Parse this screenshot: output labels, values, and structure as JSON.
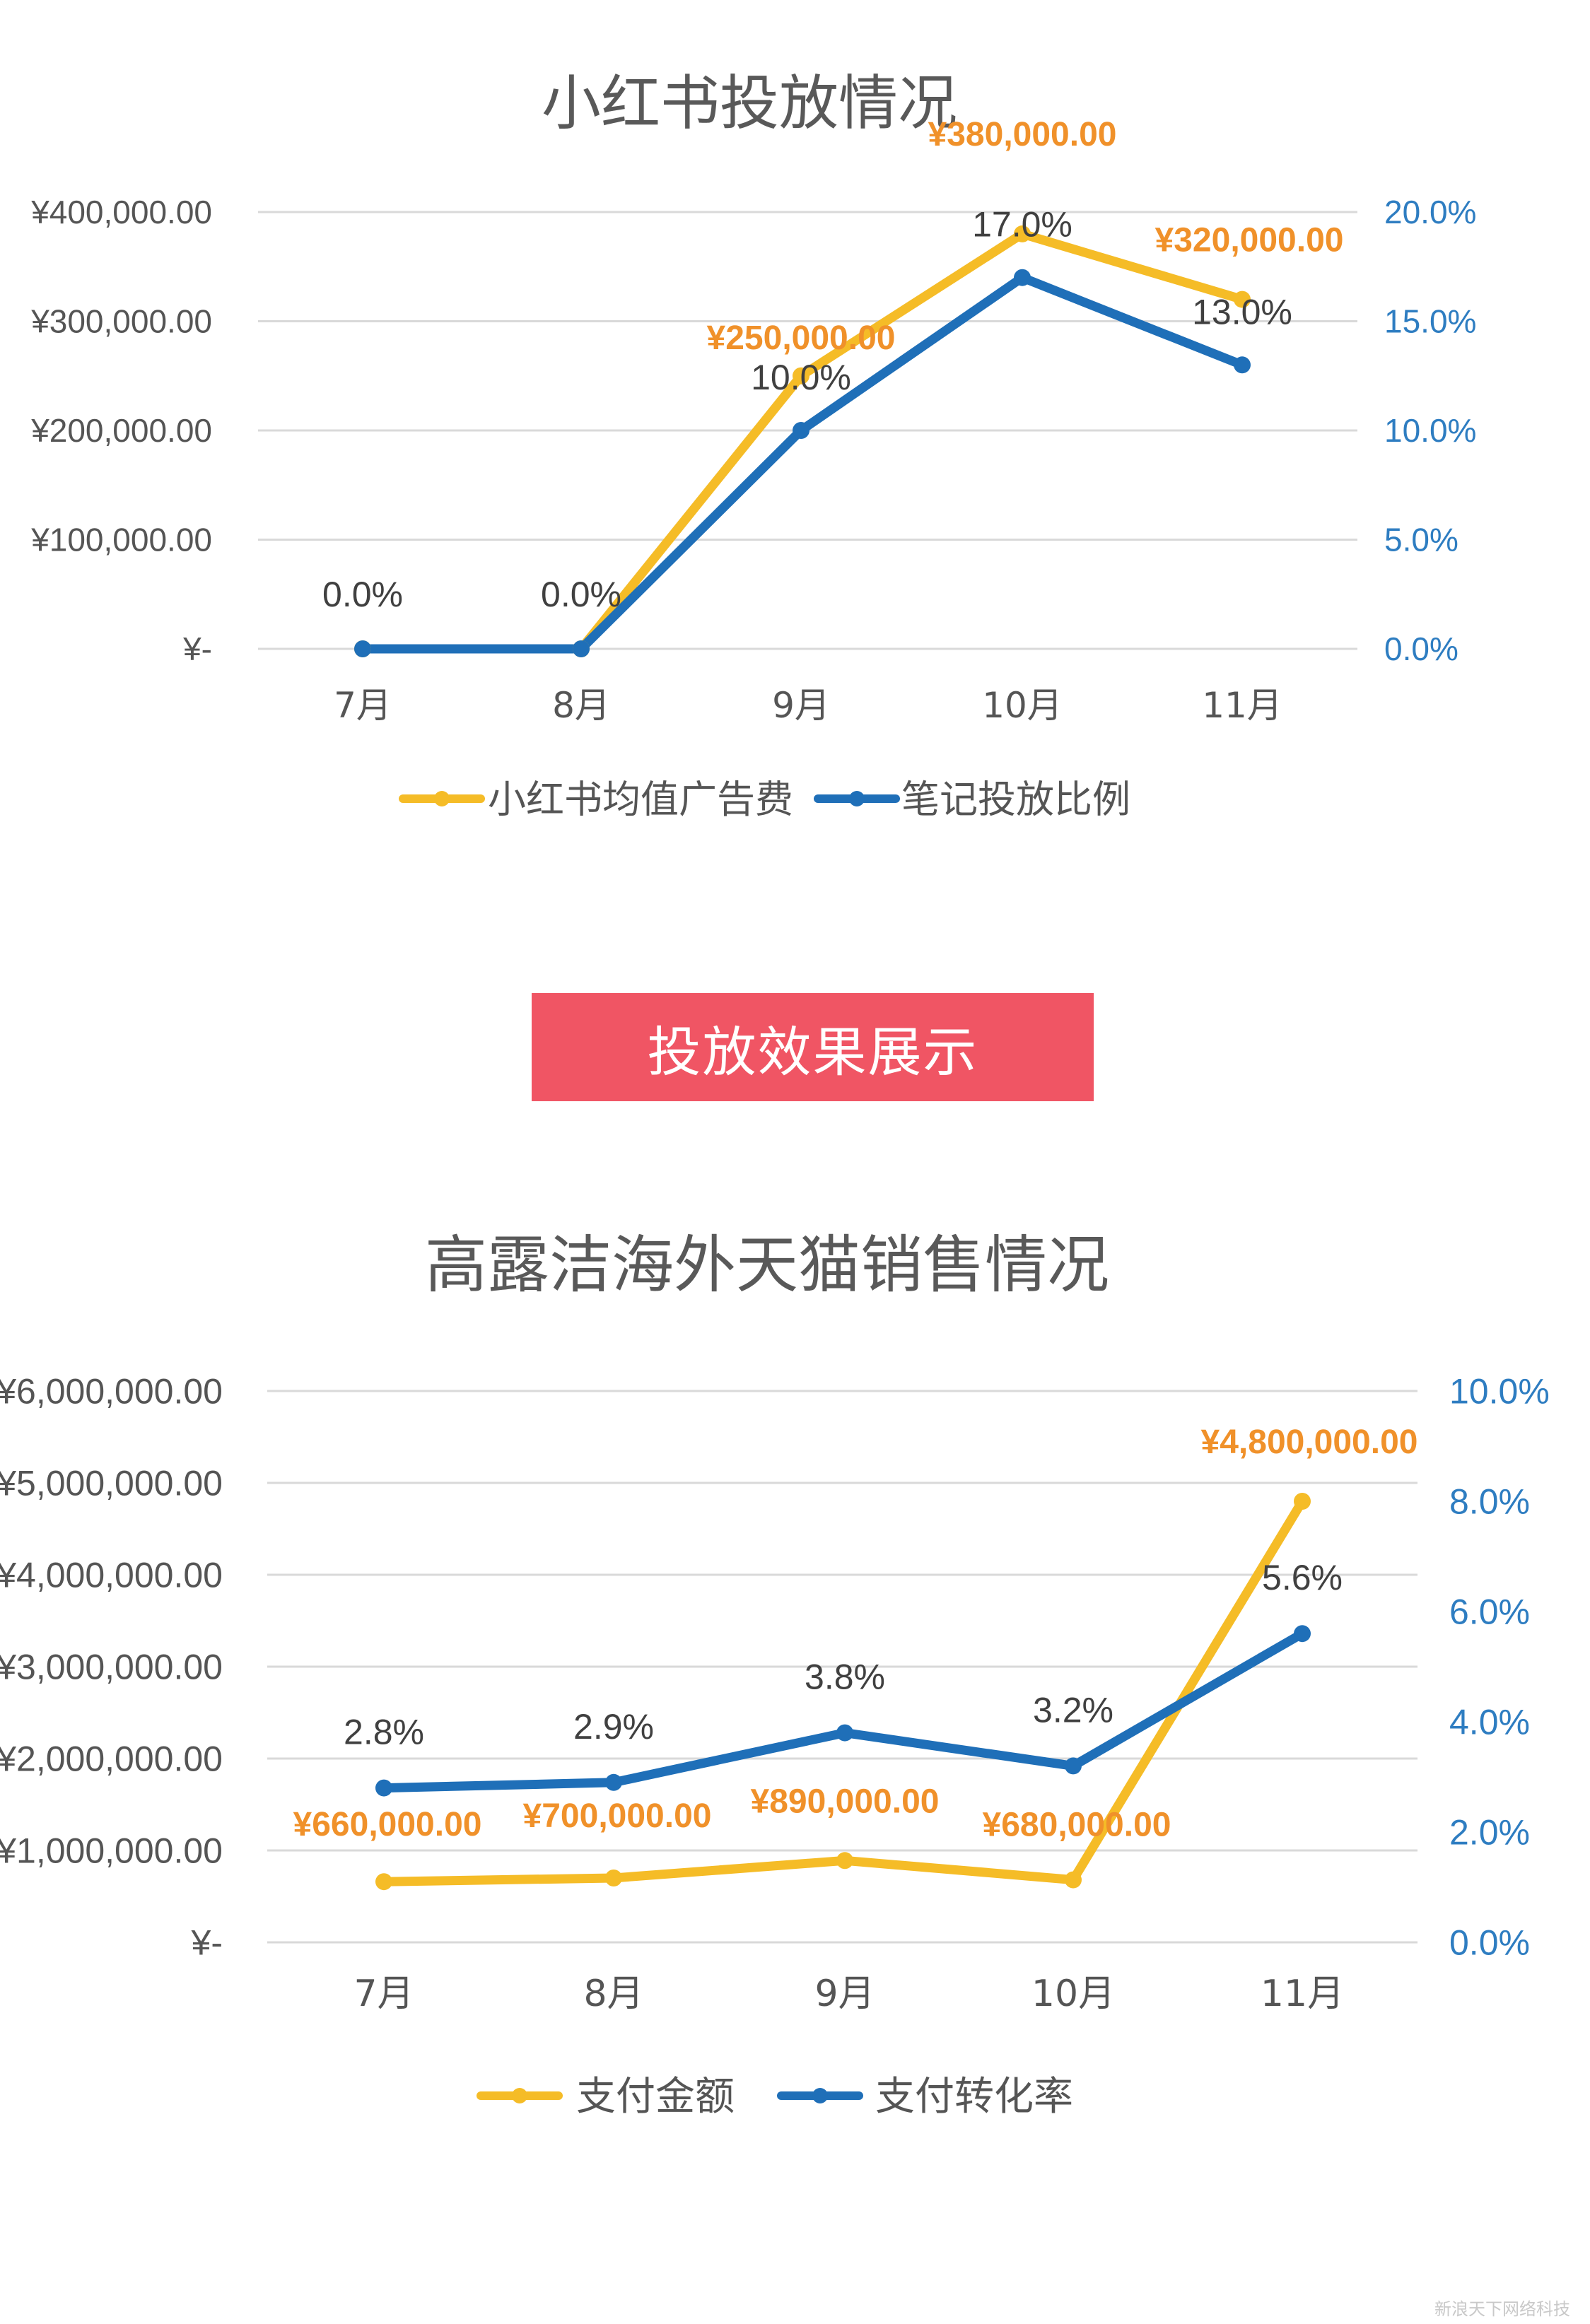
{
  "banner": {
    "label": "投放效果展示"
  },
  "watermark": "新浪天下网络科技",
  "colors": {
    "gold": "#f5bc27",
    "blue": "#1f6fb8",
    "orange_label": "#f0912a",
    "right_axis": "#2e7dc1",
    "grid": "#d9d9d9",
    "text": "#555555"
  },
  "chart_data": [
    {
      "type": "line",
      "title": "小红书投放情况",
      "categories": [
        "7月",
        "8月",
        "9月",
        "10月",
        "11月"
      ],
      "y_left": {
        "ticks": [
          "¥-",
          "¥100,000.00",
          "¥200,000.00",
          "¥300,000.00",
          "¥400,000.00"
        ],
        "ylim": [
          0,
          400000
        ]
      },
      "y_right": {
        "ticks": [
          "0.0%",
          "5.0%",
          "10.0%",
          "15.0%",
          "20.0%"
        ],
        "ylim": [
          0,
          20
        ]
      },
      "grid": true,
      "legend_position": "bottom",
      "series": [
        {
          "name": "小红书均值广告费",
          "axis": "left",
          "color": "#f5bc27",
          "values": [
            0,
            0,
            250000,
            380000,
            320000
          ],
          "labels": [
            "",
            "",
            "¥250,000.00",
            "¥380,000.00",
            "¥320,000.00"
          ]
        },
        {
          "name": "笔记投放比例",
          "axis": "right",
          "color": "#1f6fb8",
          "values": [
            0,
            0,
            10,
            17,
            13
          ],
          "labels": [
            "0.0%",
            "0.0%",
            "10.0%",
            "17.0%",
            "13.0%"
          ]
        }
      ]
    },
    {
      "type": "line",
      "title": "高露洁海外天猫销售情况",
      "categories": [
        "7月",
        "8月",
        "9月",
        "10月",
        "11月"
      ],
      "y_left": {
        "ticks": [
          "¥-",
          "¥1,000,000.00",
          "¥2,000,000.00",
          "¥3,000,000.00",
          "¥4,000,000.00",
          "¥5,000,000.00",
          "¥6,000,000.00"
        ],
        "ylim": [
          0,
          6000000
        ]
      },
      "y_right": {
        "ticks": [
          "0.0%",
          "2.0%",
          "4.0%",
          "6.0%",
          "8.0%",
          "10.0%"
        ],
        "ylim": [
          0,
          10
        ]
      },
      "grid": true,
      "legend_position": "bottom",
      "series": [
        {
          "name": "支付金额",
          "axis": "left",
          "color": "#f5bc27",
          "values": [
            660000,
            700000,
            890000,
            680000,
            4800000
          ],
          "labels": [
            "¥660,000.00",
            "¥700,000.00",
            "¥890,000.00",
            "¥680,000.00",
            "¥4,800,000.00"
          ]
        },
        {
          "name": "支付转化率",
          "axis": "right",
          "color": "#1f6fb8",
          "values": [
            2.8,
            2.9,
            3.8,
            3.2,
            5.6
          ],
          "labels": [
            "2.8%",
            "2.9%",
            "3.8%",
            "3.2%",
            "5.6%"
          ]
        }
      ]
    }
  ]
}
